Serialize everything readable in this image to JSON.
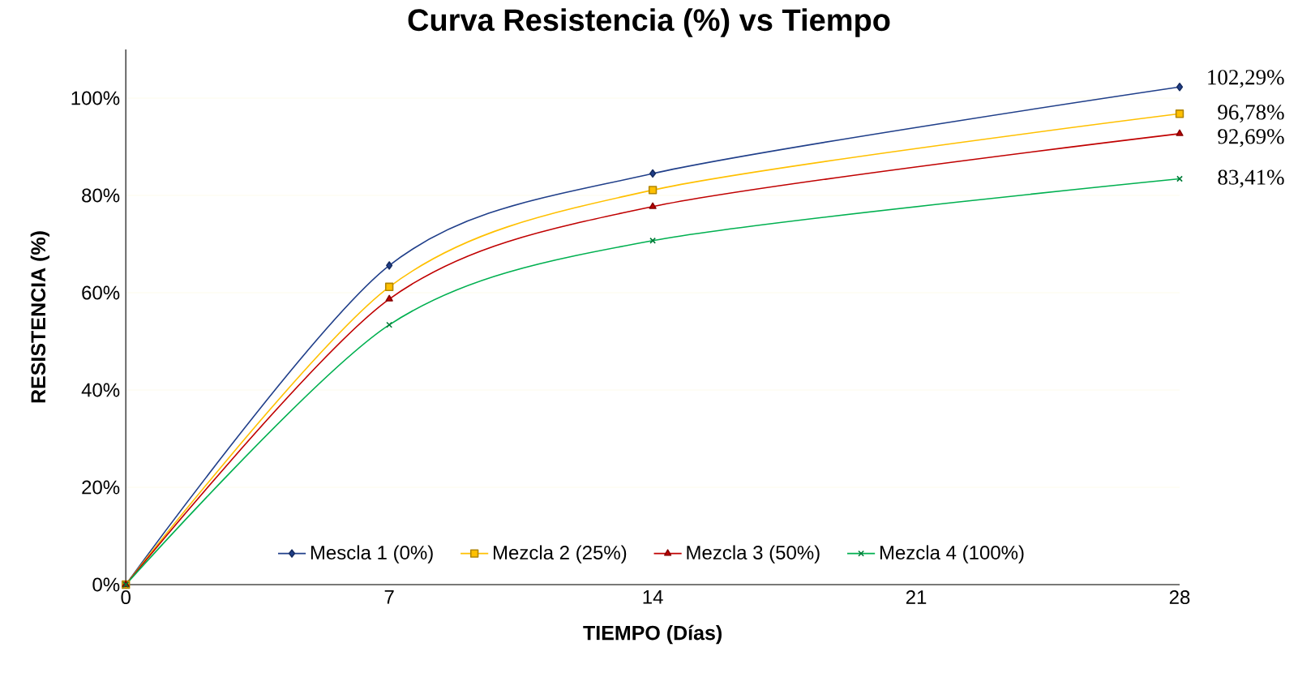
{
  "chart_data": {
    "type": "line",
    "title": "Curva Resistencia (%) vs Tiempo",
    "xlabel": "TIEMPO (Días)",
    "ylabel": "RESISTENCIA (%)",
    "x": [
      0,
      7,
      14,
      28
    ],
    "series": [
      {
        "name": "Mescla 1 (0%)",
        "color": "#203f8a",
        "marker": "diamond",
        "values": [
          0,
          65.6,
          84.5,
          102.29
        ],
        "value_labels": [
          null,
          null,
          null,
          "102,29%"
        ]
      },
      {
        "name": "Mezcla 2 (25%)",
        "color": "#ffc000",
        "marker": "square",
        "values": [
          0,
          61.2,
          81.1,
          96.78
        ],
        "value_labels": [
          null,
          null,
          null,
          "96,78%"
        ]
      },
      {
        "name": "Mezcla 3 (50%)",
        "color": "#c00000",
        "marker": "triangle",
        "values": [
          0,
          58.7,
          77.7,
          92.69
        ],
        "value_labels": [
          null,
          null,
          null,
          "92,69%"
        ]
      },
      {
        "name": "Mezcla 4 (100%)",
        "color": "#00b050",
        "marker": "cross",
        "values": [
          0,
          53.4,
          70.7,
          83.41
        ],
        "value_labels": [
          null,
          null,
          null,
          "83,41%"
        ]
      }
    ],
    "xlim": [
      0,
      28
    ],
    "xticks": [
      0,
      7,
      14,
      21,
      28
    ],
    "ylim": [
      0,
      110
    ],
    "yticks": [
      {
        "value": 0,
        "label": "0%"
      },
      {
        "value": 20,
        "label": "20%"
      },
      {
        "value": 40,
        "label": "40%"
      },
      {
        "value": 60,
        "label": "60%"
      },
      {
        "value": 80,
        "label": "80%"
      },
      {
        "value": 100,
        "label": "100%"
      }
    ],
    "grid": "y",
    "legend": "bottom",
    "line_style": "solid"
  }
}
